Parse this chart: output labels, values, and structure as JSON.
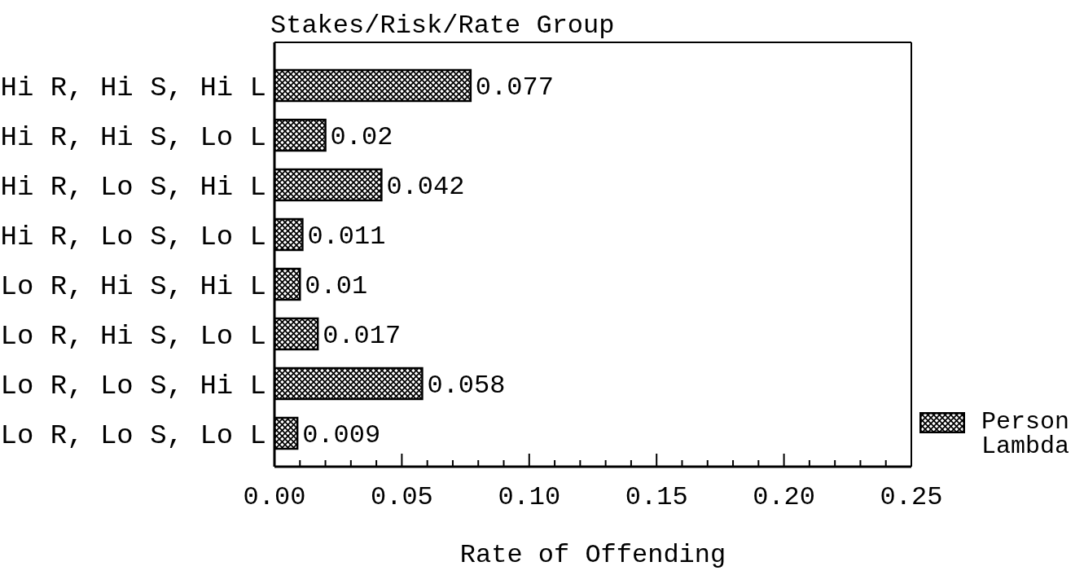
{
  "chart_data": {
    "type": "bar",
    "orientation": "horizontal",
    "ylabel": "Stakes/Risk/Rate Group",
    "xlabel": "Rate of Offending",
    "categories": [
      "Hi R, Hi S, Hi L",
      "Hi R, Hi S, Lo L",
      "Hi R, Lo S, Hi L",
      "Hi R, Lo S, Lo L",
      "Lo R, Hi S, Hi L",
      "Lo R, Hi S, Lo L",
      "Lo R, Lo S, Hi L",
      "Lo R, Lo S, Lo L"
    ],
    "series": [
      {
        "name": "Person Lambda",
        "color": "#000000",
        "values": [
          0.077,
          0.02,
          0.042,
          0.011,
          0.01,
          0.017,
          0.058,
          0.009
        ]
      }
    ],
    "xlim": [
      0,
      0.25
    ],
    "xticks": [
      {
        "value": 0,
        "label": "0.00"
      },
      {
        "value": 0.01,
        "label": null
      },
      {
        "value": 0.02,
        "label": null
      },
      {
        "value": 0.03,
        "label": null
      },
      {
        "value": 0.04,
        "label": null
      },
      0.05,
      {
        "value": 0.06,
        "label": null
      },
      {
        "value": 0.07,
        "label": null
      },
      {
        "value": 0.08,
        "label": null
      },
      {
        "value": 0.09,
        "label": null
      },
      {
        "value": 0.1,
        "label": "0.10"
      },
      {
        "value": 0.11,
        "label": null
      },
      {
        "value": 0.12,
        "label": null
      },
      {
        "value": 0.13,
        "label": null
      },
      {
        "value": 0.14,
        "label": null
      },
      0.15,
      {
        "value": 0.16,
        "label": null
      },
      {
        "value": 0.17,
        "label": null
      },
      {
        "value": 0.18,
        "label": null
      },
      {
        "value": 0.19,
        "label": null
      },
      {
        "value": 0.2,
        "label": "0.20"
      },
      {
        "value": 0.21,
        "label": null
      },
      {
        "value": 0.22,
        "label": null
      },
      {
        "value": 0.23,
        "label": null
      },
      {
        "value": 0.24,
        "label": null
      },
      0.25
    ],
    "data_labels": true,
    "legend": "bottom right"
  }
}
